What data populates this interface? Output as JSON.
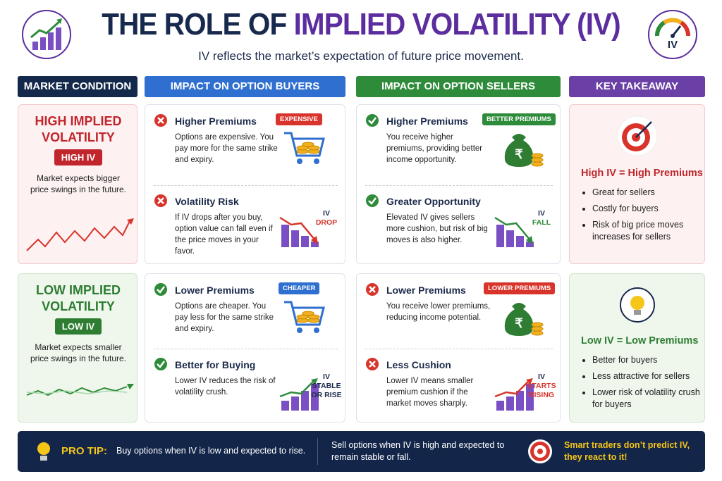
{
  "header": {
    "title_part1": "THE ROLE OF",
    "title_part2": "IMPLIED VOLATILITY (IV)",
    "subtitle": "IV reflects the market’s expectation of future price movement.",
    "gauge_label": "IV"
  },
  "columns": [
    "MARKET CONDITION",
    "IMPACT ON OPTION BUYERS",
    "IMPACT ON OPTION SELLERS",
    "KEY TAKEAWAY"
  ],
  "rows": [
    {
      "condition": {
        "title": "HIGH IMPLIED VOLATILITY",
        "badge": "HIGH IV",
        "text": "Market expects bigger price swings in the future."
      },
      "buyers": [
        {
          "heading": "Higher Premiums",
          "text": "Options are expensive. You pay more for the same strike and expiry.",
          "tag": [
            "EXPENSIVE"
          ]
        },
        {
          "heading": "Volatility Risk",
          "text": "If IV drops after you buy, option value can fall even if the price moves in your favor.",
          "tag": [
            "IV",
            "DROP"
          ]
        }
      ],
      "sellers": [
        {
          "heading": "Higher Premiums",
          "text": "You receive higher premiums, providing better income opportunity.",
          "tag": [
            "BETTER PREMIUMS"
          ]
        },
        {
          "heading": "Greater Opportunity",
          "text": "Elevated IV gives sellers more cushion, but risk of big moves is also higher.",
          "tag": [
            "IV",
            "FALL"
          ]
        }
      ],
      "takeaway": {
        "heading": "High IV = High Premiums",
        "points": [
          "Great for sellers",
          "Costly for buyers",
          "Risk of big price moves increases for sellers"
        ]
      }
    },
    {
      "condition": {
        "title": "LOW IMPLIED VOLATILITY",
        "badge": "LOW IV",
        "text": "Market expects smaller price swings in the future."
      },
      "buyers": [
        {
          "heading": "Lower Premiums",
          "text": "Options are cheaper. You pay less for the same strike and expiry.",
          "tag": [
            "CHEAPER"
          ]
        },
        {
          "heading": "Better for Buying",
          "text": "Lower IV reduces the risk of volatility crush.",
          "tag": [
            "IV",
            "STABLE",
            "OR RISE"
          ]
        }
      ],
      "sellers": [
        {
          "heading": "Lower Premiums",
          "text": "You receive lower premiums, reducing income potential.",
          "tag": [
            "LOWER PREMIUMS"
          ]
        },
        {
          "heading": "Less Cushion",
          "text": "Lower IV means smaller premium cushion if the market moves sharply.",
          "tag": [
            "IV",
            "STARTS",
            "RISING"
          ]
        }
      ],
      "takeaway": {
        "heading": "Low IV = Low Premiums",
        "points": [
          "Better for buyers",
          "Less attractive for sellers",
          "Lower risk of volatility crush for buyers"
        ]
      }
    }
  ],
  "pro_tip": {
    "label": "PRO TIP:",
    "buy": "Buy options when IV is low and expected to rise.",
    "sell": "Sell options when IV is high and expected to remain stable or fall.",
    "closing": "Smart traders don’t predict IV, they react to it!"
  }
}
